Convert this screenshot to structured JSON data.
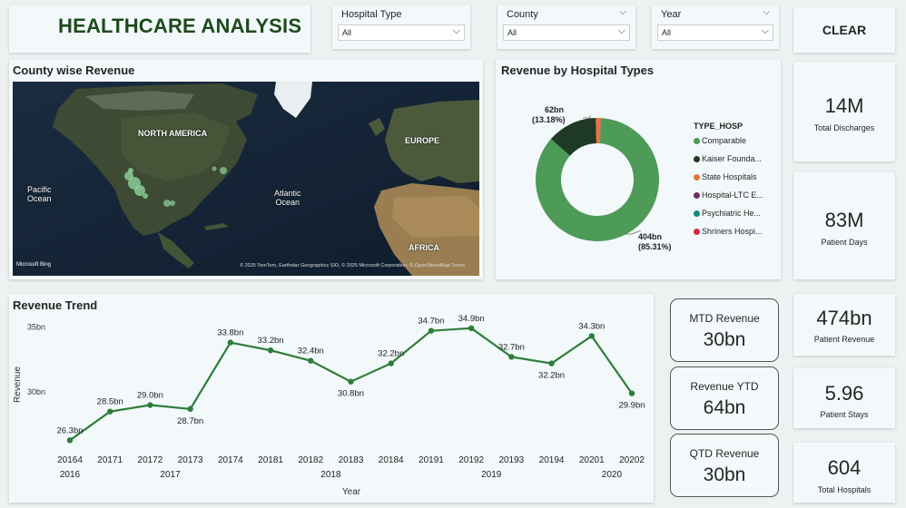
{
  "header": {
    "title": "HEALTHCARE ANALYSIS"
  },
  "filters": {
    "hospital_type": {
      "label": "Hospital Type",
      "value": "All"
    },
    "county": {
      "label": "County",
      "value": "All"
    },
    "year": {
      "label": "Year",
      "value": "All"
    },
    "clear_label": "CLEAR"
  },
  "kpis": {
    "total_discharges": {
      "value": "14M",
      "label": "Total Discharges"
    },
    "patient_days": {
      "value": "83M",
      "label": "Patient Days"
    },
    "patient_revenue": {
      "value": "474bn",
      "label": "Patient Revenue"
    },
    "patient_stays": {
      "value": "5.96",
      "label": "Patient Stays"
    },
    "total_hospitals": {
      "value": "604",
      "label": "Total Hospitals"
    }
  },
  "revenue_boxes": {
    "mtd": {
      "label": "MTD Revenue",
      "value": "30bn"
    },
    "ytd": {
      "label": "Revenue YTD",
      "value": "64bn"
    },
    "qtd": {
      "label": "QTD Revenue",
      "value": "30bn"
    }
  },
  "map": {
    "title": "County wise Revenue",
    "labels": {
      "north_america": "NORTH AMERICA",
      "europe": "EUROPE",
      "pacific": "Pacific\nOcean",
      "atlantic": "Atlantic\nOcean",
      "africa": "AFRICA"
    },
    "bing": "Microsoft Bing",
    "attribution": "© 2025 TomTom, Earthstar Geographics SIO, © 2025 Microsoft Corporation, © OpenStreetMap  Terms"
  },
  "donut": {
    "title": "Revenue by Hospital Types",
    "legend_title": "TYPE_HOSP",
    "legend": [
      {
        "name": "Comparable",
        "color": "#4e9a57"
      },
      {
        "name": "Kaiser Founda...",
        "color": "#1f3a24"
      },
      {
        "name": "State Hospitals",
        "color": "#e8743b"
      },
      {
        "name": "Hospital-LTC E...",
        "color": "#6b2d6b"
      },
      {
        "name": "Psychiatric He...",
        "color": "#128a7a"
      },
      {
        "name": "Shriners Hospi...",
        "color": "#d9263a"
      }
    ],
    "label_large": "404bn",
    "label_large_pct": "(85.31%)",
    "label_small": "62bn",
    "label_small_pct": "(13.18%)"
  },
  "chart_data": {
    "type": "line",
    "title": "Revenue Trend",
    "xlabel": "Year",
    "ylabel": "Revenue",
    "ylim": [
      25,
      36
    ],
    "yticks": [
      "30bn",
      "35bn"
    ],
    "categories": [
      "20164",
      "20171",
      "20172",
      "20173",
      "20174",
      "20181",
      "20182",
      "20183",
      "20184",
      "20191",
      "20192",
      "20193",
      "20194",
      "20201",
      "20202"
    ],
    "year_groups": [
      {
        "year": "2016",
        "start": 0,
        "end": 0
      },
      {
        "year": "2017",
        "start": 1,
        "end": 4
      },
      {
        "year": "2018",
        "start": 5,
        "end": 8
      },
      {
        "year": "2019",
        "start": 9,
        "end": 12
      },
      {
        "year": "2020",
        "start": 13,
        "end": 14
      }
    ],
    "series": [
      {
        "values": [
          26.3,
          28.5,
          29.0,
          28.7,
          33.8,
          33.2,
          32.4,
          30.8,
          32.2,
          34.7,
          34.9,
          32.7,
          32.2,
          34.3,
          29.9
        ],
        "data_labels": [
          "26.3bn",
          "28.5bn",
          "29.0bn",
          "28.7bn",
          "33.8bn",
          "33.2bn",
          "32.4bn",
          "30.8bn",
          "32.2bn",
          "34.7bn",
          "34.9bn",
          "32.7bn",
          "32.2bn",
          "34.3bn",
          "29.9bn"
        ],
        "label_pos": [
          "above",
          "above",
          "above",
          "below",
          "above",
          "above",
          "above",
          "below",
          "above",
          "above",
          "above",
          "above",
          "below",
          "above",
          "below"
        ],
        "color": "#2e7d3a"
      }
    ]
  }
}
